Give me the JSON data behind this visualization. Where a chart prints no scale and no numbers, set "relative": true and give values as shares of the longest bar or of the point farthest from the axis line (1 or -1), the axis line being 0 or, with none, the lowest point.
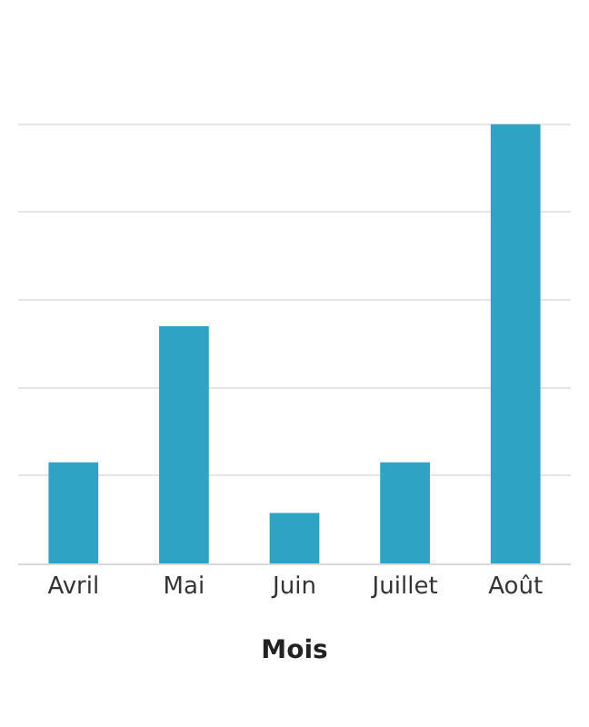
{
  "chart_data": {
    "type": "bar",
    "relative": true,
    "categories": [
      "Avril",
      "Mai",
      "Juin",
      "Juillet",
      "Août"
    ],
    "values": [
      0.23,
      0.54,
      0.115,
      0.23,
      1
    ],
    "color": "#2ea3c4",
    "xlabel": "Mois",
    "grid": "y"
  }
}
